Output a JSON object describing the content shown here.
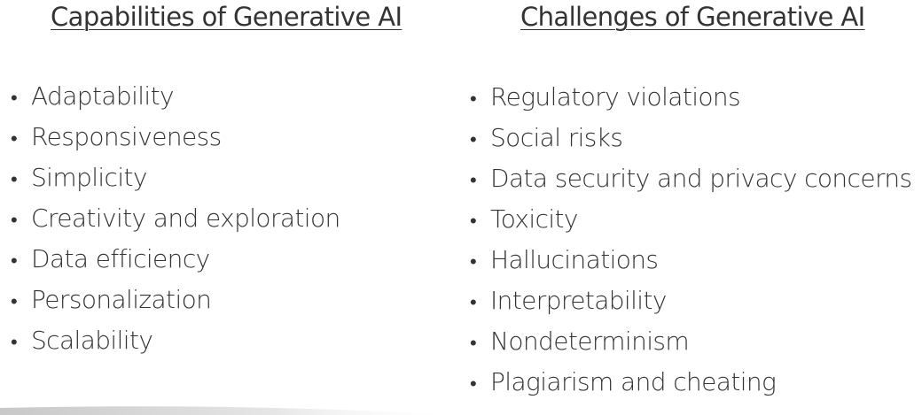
{
  "left": {
    "heading": "Capabilities of Generative AI",
    "items": [
      "Adaptability",
      "Responsiveness",
      "Simplicity",
      "Creativity and exploration",
      "Data efficiency",
      "Personalization",
      "Scalability"
    ]
  },
  "right": {
    "heading": "Challenges of Generative AI",
    "items": [
      "Regulatory violations",
      "Social risks",
      "Data security and privacy concerns",
      "Toxicity",
      "Hallucinations",
      "Interpretability",
      "Nondeterminism",
      "Plagiarism and cheating"
    ]
  },
  "bullet_glyph": "•",
  "colors": {
    "text": "#333333",
    "background": "#ffffff",
    "footer_shape": "#d9d9d9"
  }
}
